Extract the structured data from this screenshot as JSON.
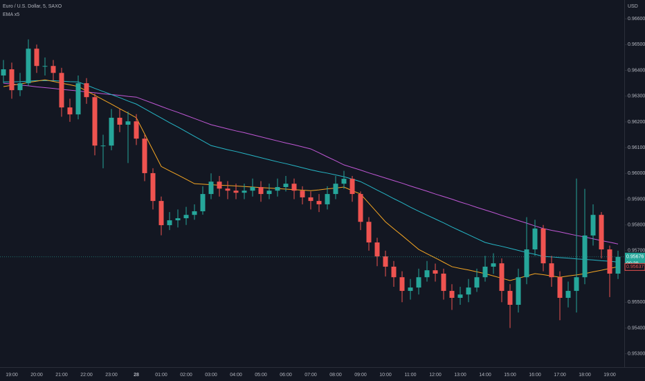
{
  "chart_data": {
    "type": "candlestick",
    "title": "Euro / U.S. Dollar, 5, SAXO",
    "legend_label": "EMA x5",
    "currency": "USD",
    "categories": [
      null,
      "19:00",
      null,
      null,
      "20:00",
      null,
      null,
      "21:00",
      null,
      null,
      "22:00",
      null,
      null,
      "23:00",
      null,
      null,
      "28",
      null,
      null,
      "01:00",
      null,
      null,
      "02:00",
      null,
      null,
      "03:00",
      null,
      null,
      "04:00",
      null,
      null,
      "05:00",
      null,
      null,
      "06:00",
      null,
      null,
      "07:00",
      null,
      null,
      "08:00",
      null,
      null,
      "09:00",
      null,
      null,
      "10:00",
      null,
      null,
      "11:00",
      null,
      null,
      "12:00",
      null,
      null,
      "13:00",
      null,
      null,
      "14:00",
      null,
      null,
      "15:00",
      null,
      null,
      "16:00",
      null,
      null,
      "17:00",
      null,
      null,
      "18:00",
      null,
      null,
      "19:00",
      null
    ],
    "open": [
      0.9638,
      0.96404,
      0.96323,
      0.9635,
      0.96484,
      0.96417,
      0.96417,
      0.9639,
      0.96256,
      0.96229,
      0.9635,
      0.96296,
      0.96108,
      0.96108,
      0.96216,
      0.96189,
      0.96202,
      0.96135,
      0.96001,
      0.95893,
      0.95799,
      0.95818,
      0.95826,
      0.95839,
      0.95853,
      0.9592,
      0.95968,
      0.95941,
      0.95933,
      0.95925,
      0.95933,
      0.95947,
      0.9592,
      0.95933,
      0.95947,
      0.9596,
      0.95933,
      0.95907,
      0.95893,
      0.9588,
      0.9592,
      0.9596,
      0.95979,
      0.9592,
      0.95812,
      0.95732,
      0.95678,
      0.95638,
      0.95597,
      0.95544,
      0.95557,
      0.95597,
      0.95624,
      0.95611,
      0.95544,
      0.95517,
      0.9553,
      0.95557,
      0.95597,
      0.95638,
      0.95651,
      0.95544,
      0.9549,
      0.95597,
      0.95705,
      0.95786,
      0.95651,
      0.95597,
      0.95517,
      0.95544,
      0.95597,
      0.95759,
      0.95839,
      0.95705,
      0.95611
    ],
    "high": [
      0.9644,
      0.9643,
      0.9639,
      0.9652,
      0.965,
      0.9645,
      0.9644,
      0.9641,
      0.9629,
      0.9638,
      0.9637,
      0.9631,
      0.9615,
      0.9625,
      0.9625,
      0.9624,
      0.9623,
      0.9615,
      0.9602,
      0.9591,
      0.9585,
      0.9586,
      0.9587,
      0.9588,
      0.9595,
      0.96,
      0.9599,
      0.9597,
      0.9596,
      0.9596,
      0.9598,
      0.9597,
      0.9596,
      0.9598,
      0.9599,
      0.9598,
      0.9595,
      0.9593,
      0.9592,
      0.9595,
      0.9599,
      0.9601,
      0.9599,
      0.9593,
      0.9583,
      0.9575,
      0.957,
      0.9566,
      0.9562,
      0.9559,
      0.9563,
      0.9566,
      0.9565,
      0.9563,
      0.9557,
      0.9556,
      0.9559,
      0.9563,
      0.9568,
      0.9569,
      0.9567,
      0.9557,
      0.9563,
      0.9583,
      0.9582,
      0.958,
      0.9568,
      0.9562,
      0.9558,
      0.9598,
      0.9594,
      0.9588,
      0.9585,
      0.9572,
      0.957
    ],
    "low": [
      0.9635,
      0.9629,
      0.963,
      0.9634,
      0.9639,
      0.9638,
      0.9636,
      0.9622,
      0.962,
      0.9621,
      0.9627,
      0.9607,
      0.9602,
      0.9609,
      0.9616,
      0.9604,
      0.9611,
      0.9597,
      0.9586,
      0.9576,
      0.9578,
      0.9579,
      0.958,
      0.9582,
      0.9584,
      0.959,
      0.9591,
      0.959,
      0.959,
      0.959,
      0.9591,
      0.9589,
      0.959,
      0.9591,
      0.9593,
      0.959,
      0.9588,
      0.9586,
      0.9585,
      0.9586,
      0.959,
      0.9594,
      0.9589,
      0.9578,
      0.957,
      0.9564,
      0.956,
      0.9556,
      0.955,
      0.9551,
      0.9553,
      0.9558,
      0.9558,
      0.9551,
      0.9547,
      0.9549,
      0.955,
      0.9554,
      0.9558,
      0.9561,
      0.955,
      0.954,
      0.9546,
      0.9557,
      0.9568,
      0.9562,
      0.9556,
      0.9543,
      0.9548,
      0.9546,
      0.9557,
      0.9572,
      0.9567,
      0.9552,
      0.9559
    ],
    "close": [
      0.96404,
      0.96323,
      0.9635,
      0.96484,
      0.96417,
      0.96417,
      0.9639,
      0.96256,
      0.96229,
      0.9635,
      0.96296,
      0.96108,
      0.96108,
      0.96216,
      0.96189,
      0.96202,
      0.96135,
      0.96001,
      0.95893,
      0.95799,
      0.95818,
      0.95826,
      0.95839,
      0.95853,
      0.9592,
      0.95968,
      0.95941,
      0.95933,
      0.95925,
      0.95933,
      0.95947,
      0.9592,
      0.95933,
      0.95947,
      0.9596,
      0.95933,
      0.95907,
      0.95893,
      0.9588,
      0.9592,
      0.9596,
      0.95979,
      0.9592,
      0.95812,
      0.95732,
      0.95678,
      0.95638,
      0.95597,
      0.95544,
      0.95557,
      0.95597,
      0.95624,
      0.95611,
      0.95544,
      0.95517,
      0.9553,
      0.95557,
      0.95597,
      0.95638,
      0.95651,
      0.95544,
      0.9549,
      0.95597,
      0.95705,
      0.95786,
      0.95651,
      0.95597,
      0.95517,
      0.95544,
      0.95597,
      0.95759,
      0.95839,
      0.95705,
      0.95611,
      0.95676
    ],
    "up_color": "#26a69a",
    "down_color": "#ef5350",
    "series": [
      {
        "color": "#c158d6",
        "values": [
          0.9635,
          0.96347,
          0.96343,
          0.9634,
          0.96336,
          0.96333,
          0.9633,
          0.96326,
          0.96323,
          0.9632,
          0.96316,
          0.96313,
          0.96309,
          0.96306,
          0.96303,
          0.96299,
          0.96296,
          0.96284,
          0.96272,
          0.9626,
          0.96248,
          0.96237,
          0.96225,
          0.96213,
          0.96201,
          0.96189,
          0.96181,
          0.96173,
          0.96165,
          0.96158,
          0.9615,
          0.96142,
          0.96134,
          0.96126,
          0.96118,
          0.96111,
          0.96103,
          0.96095,
          0.9608,
          0.96064,
          0.96049,
          0.96033,
          0.96023,
          0.96013,
          0.96002,
          0.95992,
          0.95982,
          0.95972,
          0.95962,
          0.95951,
          0.95941,
          0.95931,
          0.9592,
          0.9591,
          0.959,
          0.95889,
          0.95879,
          0.95868,
          0.95858,
          0.95848,
          0.95837,
          0.95827,
          0.95817,
          0.95807,
          0.95796,
          0.95786,
          0.95779,
          0.95773,
          0.95766,
          0.95759,
          0.95753,
          0.95746,
          0.95739,
          0.95733,
          0.95726
        ]
      },
      {
        "color": "#26b6c6",
        "values": [
          0.96355,
          0.96355,
          0.96356,
          0.96358,
          0.9636,
          0.9636,
          0.9636,
          0.96358,
          0.96356,
          0.96355,
          0.96343,
          0.9633,
          0.96318,
          0.96306,
          0.96294,
          0.96281,
          0.96269,
          0.96251,
          0.96233,
          0.96215,
          0.96197,
          0.9618,
          0.96162,
          0.96144,
          0.96126,
          0.96108,
          0.961,
          0.96092,
          0.96085,
          0.96077,
          0.96069,
          0.96061,
          0.96053,
          0.96045,
          0.96038,
          0.9603,
          0.96022,
          0.96014,
          0.96007,
          0.96001,
          0.95994,
          0.95987,
          0.95978,
          0.95968,
          0.95952,
          0.95935,
          0.95919,
          0.95902,
          0.95886,
          0.95869,
          0.95853,
          0.95838,
          0.95823,
          0.95808,
          0.95792,
          0.95777,
          0.95762,
          0.95747,
          0.95732,
          0.95724,
          0.95717,
          0.95709,
          0.95701,
          0.95693,
          0.95686,
          0.95678,
          0.95676,
          0.95673,
          0.95671,
          0.95668,
          0.95666,
          0.95664,
          0.95661,
          0.95659,
          0.95656
        ]
      },
      {
        "color": "#f5a623",
        "values": [
          0.96337,
          0.96342,
          0.96347,
          0.96353,
          0.96358,
          0.96363,
          0.96357,
          0.9635,
          0.96344,
          0.96337,
          0.9632,
          0.96303,
          0.96286,
          0.96269,
          0.96251,
          0.96234,
          0.96216,
          0.96153,
          0.9609,
          0.96027,
          0.9601,
          0.95994,
          0.95977,
          0.9596,
          0.95958,
          0.95956,
          0.95954,
          0.95953,
          0.95951,
          0.95949,
          0.95947,
          0.95945,
          0.95943,
          0.95941,
          0.95939,
          0.95937,
          0.95935,
          0.95933,
          0.95936,
          0.9594,
          0.95943,
          0.95947,
          0.95933,
          0.9592,
          0.95884,
          0.95848,
          0.95812,
          0.95785,
          0.95759,
          0.95732,
          0.95705,
          0.95688,
          0.95672,
          0.95655,
          0.95638,
          0.95631,
          0.95625,
          0.95618,
          0.95611,
          0.95602,
          0.95593,
          0.95584,
          0.95593,
          0.95602,
          0.95611,
          0.95607,
          0.95602,
          0.95597,
          0.95602,
          0.95606,
          0.95611,
          0.95618,
          0.95624,
          0.95631,
          0.95638
        ]
      }
    ],
    "ylim": [
      0.95248,
      0.96673
    ],
    "yticks": [
      {
        "value": 0.966,
        "label": "0.96600"
      },
      {
        "value": 0.965,
        "label": "0.96500"
      },
      {
        "value": 0.964,
        "label": "0.96400"
      },
      {
        "value": 0.963,
        "label": "0.96300"
      },
      {
        "value": 0.962,
        "label": "0.96200"
      },
      {
        "value": 0.961,
        "label": "0.96100"
      },
      {
        "value": 0.96,
        "label": "0.96000"
      },
      {
        "value": 0.959,
        "label": "0.95900"
      },
      {
        "value": 0.958,
        "label": "0.95800"
      },
      {
        "value": 0.957,
        "label": "0.95700"
      },
      {
        "value": 0.955,
        "label": "0.95500"
      },
      {
        "value": 0.954,
        "label": "0.95400"
      },
      {
        "value": 0.953,
        "label": "0.95300"
      }
    ],
    "last_price": {
      "value": 0.95676,
      "label": "0.95676"
    },
    "countdown": "00:29",
    "price_marker": {
      "value": 0.95637,
      "label": "0.95637"
    }
  }
}
